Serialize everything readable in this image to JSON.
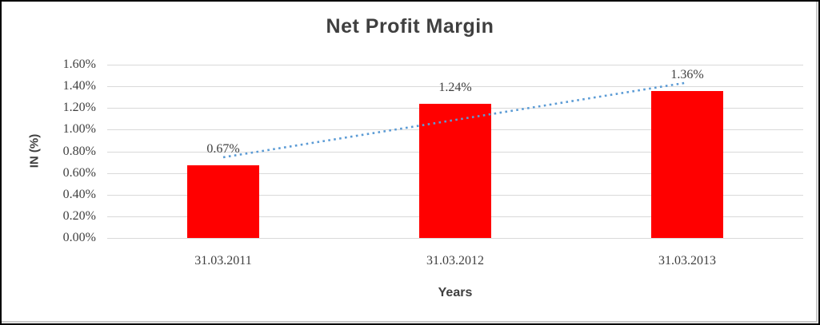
{
  "chart_data": {
    "type": "bar",
    "title": "Net Profit Margin",
    "categories": [
      "31.03.2011",
      "31.03.2012",
      "31.03.2013"
    ],
    "values": [
      0.67,
      1.24,
      1.36
    ],
    "data_labels": [
      "0.67%",
      "1.24%",
      "1.36%"
    ],
    "xlabel": "Years",
    "ylabel": "IN (%)",
    "ylim": [
      0,
      1.6
    ],
    "ytick_step": 0.2,
    "yticks": [
      {
        "value": 1.6,
        "label": "1.60%"
      },
      {
        "value": 1.4,
        "label": "1.40%"
      },
      {
        "value": 1.2,
        "label": "1.20%"
      },
      {
        "value": 1.0,
        "label": "1.00%"
      },
      {
        "value": 0.8,
        "label": "0.80%"
      },
      {
        "value": 0.6,
        "label": "0.60%"
      },
      {
        "value": 0.4,
        "label": "0.40%"
      },
      {
        "value": 0.2,
        "label": "0.20%"
      },
      {
        "value": 0.0,
        "label": "0.00%"
      }
    ],
    "grid": true,
    "legend": false,
    "colors": {
      "bar": "#ff0000",
      "trendline": "#5b9bd5",
      "gridline": "#d9d9d9",
      "text": "#3f3f3f"
    },
    "trendline": {
      "type": "linear",
      "style": "dotted",
      "start_value": 0.745,
      "end_value": 1.435
    }
  }
}
